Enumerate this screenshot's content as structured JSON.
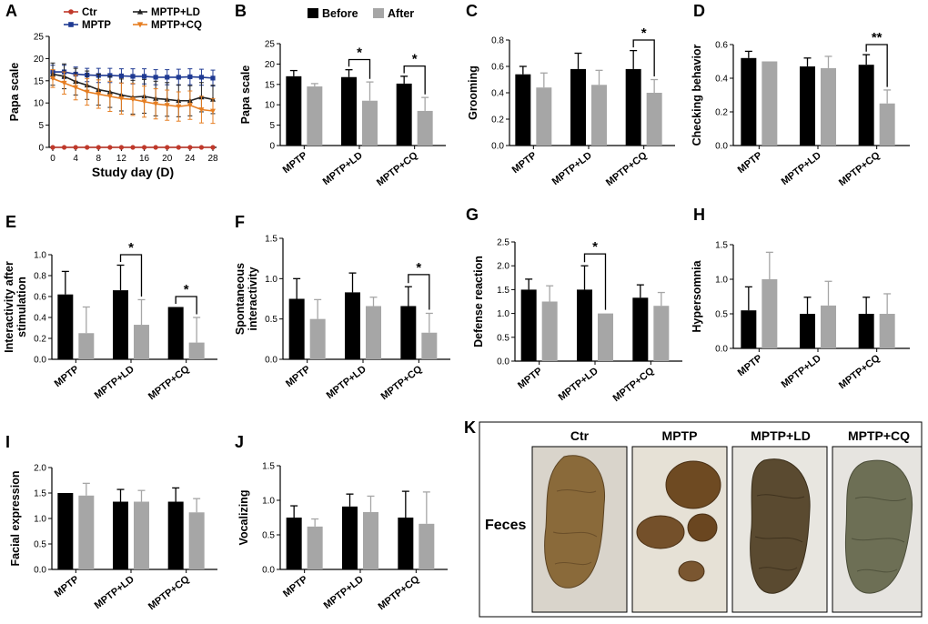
{
  "legend": {
    "before": "Before",
    "after": "After",
    "before_color": "#000000",
    "after_color": "#a6a6a6"
  },
  "chart_data": [
    {
      "id": "A",
      "type": "line",
      "ylabel": "Papa scale",
      "xlabel": "Study day (D)",
      "ylim": [
        0,
        25
      ],
      "yticks": [
        0,
        5,
        10,
        15,
        20,
        25
      ],
      "x": [
        0,
        2,
        4,
        6,
        8,
        10,
        12,
        14,
        16,
        18,
        20,
        22,
        24,
        26,
        28
      ],
      "xticks": [
        0,
        4,
        8,
        12,
        16,
        20,
        24,
        28
      ],
      "series": [
        {
          "name": "Ctr",
          "color": "#c0392b",
          "marker": "circle",
          "values": [
            0,
            0,
            0,
            0,
            0,
            0,
            0,
            0,
            0,
            0,
            0,
            0,
            0,
            0,
            0
          ],
          "err": [
            0,
            0,
            0,
            0,
            0,
            0,
            0,
            0,
            0,
            0,
            0,
            0,
            0,
            0,
            0
          ]
        },
        {
          "name": "MPTP",
          "color": "#1f3a93",
          "marker": "square",
          "values": [
            17,
            17,
            16.5,
            16.3,
            16.2,
            16.2,
            16.1,
            16,
            16,
            15.8,
            15.8,
            15.8,
            15.9,
            15.8,
            15.6
          ],
          "err": [
            1.5,
            1.5,
            1.6,
            1.5,
            1.6,
            1.6,
            1.6,
            1.7,
            1.7,
            1.7,
            1.7,
            1.8,
            1.8,
            1.8,
            1.8
          ]
        },
        {
          "name": "MPTP+LD",
          "color": "#222222",
          "marker": "triangle",
          "values": [
            16.5,
            16,
            14.8,
            14,
            13,
            12.5,
            11.8,
            11.3,
            11.5,
            11,
            10.8,
            10.5,
            10.5,
            11.3,
            10.8
          ],
          "err": [
            2.5,
            2.8,
            3,
            3.2,
            3.5,
            3.5,
            3.6,
            3.8,
            3.8,
            3.9,
            3.8,
            3.6,
            3.4,
            3.3,
            3.2
          ]
        },
        {
          "name": "MPTP+CQ",
          "color": "#e67e22",
          "marker": "triangle-down",
          "values": [
            15.5,
            14.5,
            13.5,
            12.5,
            12,
            11.5,
            11,
            10.8,
            10.3,
            9.8,
            9.5,
            9.2,
            9.5,
            8.5,
            8.2
          ],
          "err": [
            2,
            2.5,
            2.8,
            3,
            3.2,
            3.4,
            3.5,
            3.6,
            3.5,
            3.4,
            3.4,
            3.3,
            3.2,
            3,
            2.8
          ]
        }
      ]
    },
    {
      "id": "B",
      "type": "bar",
      "ylabel": "Papa scale",
      "ylim": [
        0,
        25
      ],
      "yticks": [
        0,
        5,
        10,
        15,
        20,
        25
      ],
      "categories": [
        "MPTP",
        "MPTP+LD",
        "MPTP+CQ"
      ],
      "series": [
        {
          "name": "Before",
          "values": [
            17,
            16.8,
            15.2
          ],
          "err": [
            1.4,
            1.8,
            1.8
          ]
        },
        {
          "name": "After",
          "values": [
            14.5,
            11,
            8.5
          ],
          "err": [
            0.7,
            4.6,
            3.3
          ]
        }
      ],
      "sig": [
        {
          "cat": 1,
          "label": "*"
        },
        {
          "cat": 2,
          "label": "*"
        }
      ]
    },
    {
      "id": "C",
      "type": "bar",
      "ylabel": "Grooming",
      "ylim": [
        0,
        0.8
      ],
      "yticks": [
        0.0,
        0.2,
        0.4,
        0.6,
        0.8
      ],
      "categories": [
        "MPTP",
        "MPTP+LD",
        "MPTP+CQ"
      ],
      "series": [
        {
          "name": "Before",
          "values": [
            0.54,
            0.58,
            0.58
          ],
          "err": [
            0.06,
            0.12,
            0.14
          ]
        },
        {
          "name": "After",
          "values": [
            0.44,
            0.46,
            0.4
          ],
          "err": [
            0.11,
            0.11,
            0.1
          ]
        }
      ],
      "sig": [
        {
          "cat": 2,
          "label": "*"
        }
      ]
    },
    {
      "id": "D",
      "type": "bar",
      "ylabel": "Checking behavior",
      "ylim": [
        0,
        0.6
      ],
      "yticks": [
        0.0,
        0.2,
        0.4,
        0.6
      ],
      "categories": [
        "MPTP",
        "MPTP+LD",
        "MPTP+CQ"
      ],
      "series": [
        {
          "name": "Before",
          "values": [
            0.52,
            0.47,
            0.48
          ],
          "err": [
            0.04,
            0.05,
            0.06
          ]
        },
        {
          "name": "After",
          "values": [
            0.5,
            0.46,
            0.25
          ],
          "err": [
            0,
            0.07,
            0.08
          ]
        }
      ],
      "sig": [
        {
          "cat": 2,
          "label": "**"
        }
      ]
    },
    {
      "id": "E",
      "type": "bar",
      "ylabel": "Interactivity after stimulation",
      "ylabel_lines": [
        "Interactivity after",
        "stimulation"
      ],
      "ylim": [
        0,
        1.0
      ],
      "yticks": [
        0.0,
        0.2,
        0.4,
        0.6,
        0.8,
        1.0
      ],
      "categories": [
        "MPTP",
        "MPTP+LD",
        "MPTP+CQ"
      ],
      "series": [
        {
          "name": "Before",
          "values": [
            0.62,
            0.66,
            0.5
          ],
          "err": [
            0.22,
            0.24,
            0
          ]
        },
        {
          "name": "After",
          "values": [
            0.25,
            0.33,
            0.16
          ],
          "err": [
            0.25,
            0.24,
            0.24
          ]
        }
      ],
      "sig": [
        {
          "cat": 1,
          "label": "*"
        },
        {
          "cat": 2,
          "label": "*"
        }
      ]
    },
    {
      "id": "F",
      "type": "bar",
      "ylabel": "Spontaneous interactivity",
      "ylabel_lines": [
        "Spontaneous",
        "interactivity"
      ],
      "ylim": [
        0,
        1.5
      ],
      "yticks": [
        0.0,
        0.5,
        1.0,
        1.5
      ],
      "categories": [
        "MPTP",
        "MPTP+LD",
        "MPTP+CQ"
      ],
      "series": [
        {
          "name": "Before",
          "values": [
            0.75,
            0.83,
            0.66
          ],
          "err": [
            0.25,
            0.24,
            0.24
          ]
        },
        {
          "name": "After",
          "values": [
            0.5,
            0.66,
            0.33
          ],
          "err": [
            0.24,
            0.11,
            0.24
          ]
        }
      ],
      "sig": [
        {
          "cat": 2,
          "label": "*"
        }
      ]
    },
    {
      "id": "G",
      "type": "bar",
      "ylabel": "Defense reaction",
      "ylim": [
        0,
        2.5
      ],
      "yticks": [
        0.0,
        0.5,
        1.0,
        1.5,
        2.0,
        2.5
      ],
      "categories": [
        "MPTP",
        "MPTP+LD",
        "MPTP+CQ"
      ],
      "series": [
        {
          "name": "Before",
          "values": [
            1.5,
            1.5,
            1.33
          ],
          "err": [
            0.22,
            0.5,
            0.27
          ]
        },
        {
          "name": "After",
          "values": [
            1.25,
            1.0,
            1.16
          ],
          "err": [
            0.33,
            0,
            0.28
          ]
        }
      ],
      "sig": [
        {
          "cat": 1,
          "label": "*"
        }
      ]
    },
    {
      "id": "H",
      "type": "bar",
      "ylabel": "Hypersomnia",
      "ylim": [
        0,
        1.5
      ],
      "yticks": [
        0.0,
        0.5,
        1.0,
        1.5
      ],
      "categories": [
        "MPTP",
        "MPTP+LD",
        "MPTP+CQ"
      ],
      "series": [
        {
          "name": "Before",
          "values": [
            0.55,
            0.5,
            0.5
          ],
          "err": [
            0.34,
            0.24,
            0.24
          ]
        },
        {
          "name": "After",
          "values": [
            1.0,
            0.62,
            0.5
          ],
          "err": [
            0.39,
            0.35,
            0.29
          ]
        }
      ],
      "sig": []
    },
    {
      "id": "I",
      "type": "bar",
      "ylabel": "Facial expression",
      "ylim": [
        0,
        2.0
      ],
      "yticks": [
        0.0,
        0.5,
        1.0,
        1.5,
        2.0
      ],
      "categories": [
        "MPTP",
        "MPTP+LD",
        "MPTP+CQ"
      ],
      "series": [
        {
          "name": "Before",
          "values": [
            1.5,
            1.33,
            1.33
          ],
          "err": [
            0,
            0.24,
            0.27
          ]
        },
        {
          "name": "After",
          "values": [
            1.45,
            1.33,
            1.12
          ],
          "err": [
            0.24,
            0.22,
            0.27
          ]
        }
      ],
      "sig": []
    },
    {
      "id": "J",
      "type": "bar",
      "ylabel": "Vocalizing",
      "ylim": [
        0,
        1.5
      ],
      "yticks": [
        0.0,
        0.5,
        1.0,
        1.5
      ],
      "categories": [
        "MPTP",
        "MPTP+LD",
        "MPTP+CQ"
      ],
      "series": [
        {
          "name": "Before",
          "values": [
            0.75,
            0.91,
            0.75
          ],
          "err": [
            0.17,
            0.18,
            0.38
          ]
        },
        {
          "name": "After",
          "values": [
            0.62,
            0.83,
            0.66
          ],
          "err": [
            0.11,
            0.23,
            0.46
          ]
        }
      ],
      "sig": []
    }
  ],
  "panel_k": {
    "letter": "K",
    "row_label": "Feces",
    "groups": [
      "Ctr",
      "MPTP",
      "MPTP+LD",
      "MPTP+CQ"
    ]
  }
}
